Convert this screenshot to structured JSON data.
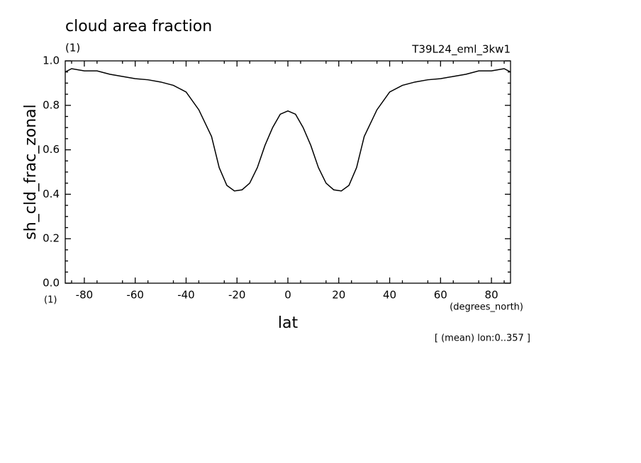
{
  "chart_data": {
    "type": "line",
    "title": "cloud area fraction",
    "units": "(1)",
    "experiment": "T39L24_eml_3kw1",
    "y_label": "sh_cld_frac_zonal",
    "y_units": "(1)",
    "x_label": "lat",
    "x_units": "(degrees_north)",
    "annotation": "[ (mean) lon:0..357 ]",
    "color": "#000000",
    "x": [
      -87.5,
      -85,
      -80,
      -75,
      -70,
      -65,
      -60,
      -55,
      -50,
      -45,
      -40,
      -35,
      -30,
      -27,
      -24,
      -21,
      -18,
      -15,
      -12,
      -9,
      -6,
      -3,
      0,
      3,
      6,
      9,
      12,
      15,
      18,
      21,
      24,
      27,
      30,
      35,
      40,
      45,
      50,
      55,
      60,
      65,
      70,
      75,
      80,
      85,
      87.5
    ],
    "values": [
      0.95,
      0.965,
      0.955,
      0.955,
      0.94,
      0.93,
      0.92,
      0.915,
      0.905,
      0.89,
      0.86,
      0.78,
      0.66,
      0.52,
      0.44,
      0.415,
      0.42,
      0.45,
      0.52,
      0.62,
      0.7,
      0.76,
      0.775,
      0.76,
      0.7,
      0.62,
      0.52,
      0.45,
      0.42,
      0.415,
      0.44,
      0.52,
      0.66,
      0.78,
      0.86,
      0.89,
      0.905,
      0.915,
      0.92,
      0.93,
      0.94,
      0.955,
      0.955,
      0.965,
      0.95
    ],
    "xlim": [
      -87.5,
      87.5
    ],
    "ylim": [
      0,
      1
    ],
    "xticks": [
      -80,
      -60,
      -40,
      -20,
      0,
      20,
      40,
      60,
      80
    ],
    "yticks": [
      {
        "value": 0,
        "label": "0.0"
      },
      0.2,
      0.4,
      0.6,
      0.8,
      {
        "value": 1,
        "label": "1.0"
      }
    ],
    "xminorticks": [
      -85,
      -75,
      -65,
      -55,
      -45,
      -35,
      -25,
      -15,
      -5,
      5,
      15,
      25,
      35,
      45,
      55,
      65,
      75,
      85
    ],
    "yminorticks": [
      0.05,
      0.1,
      0.15,
      0.25,
      0.3,
      0.35,
      0.45,
      0.5,
      0.55,
      0.65,
      0.7,
      0.75,
      0.85,
      0.9,
      0.95
    ]
  }
}
